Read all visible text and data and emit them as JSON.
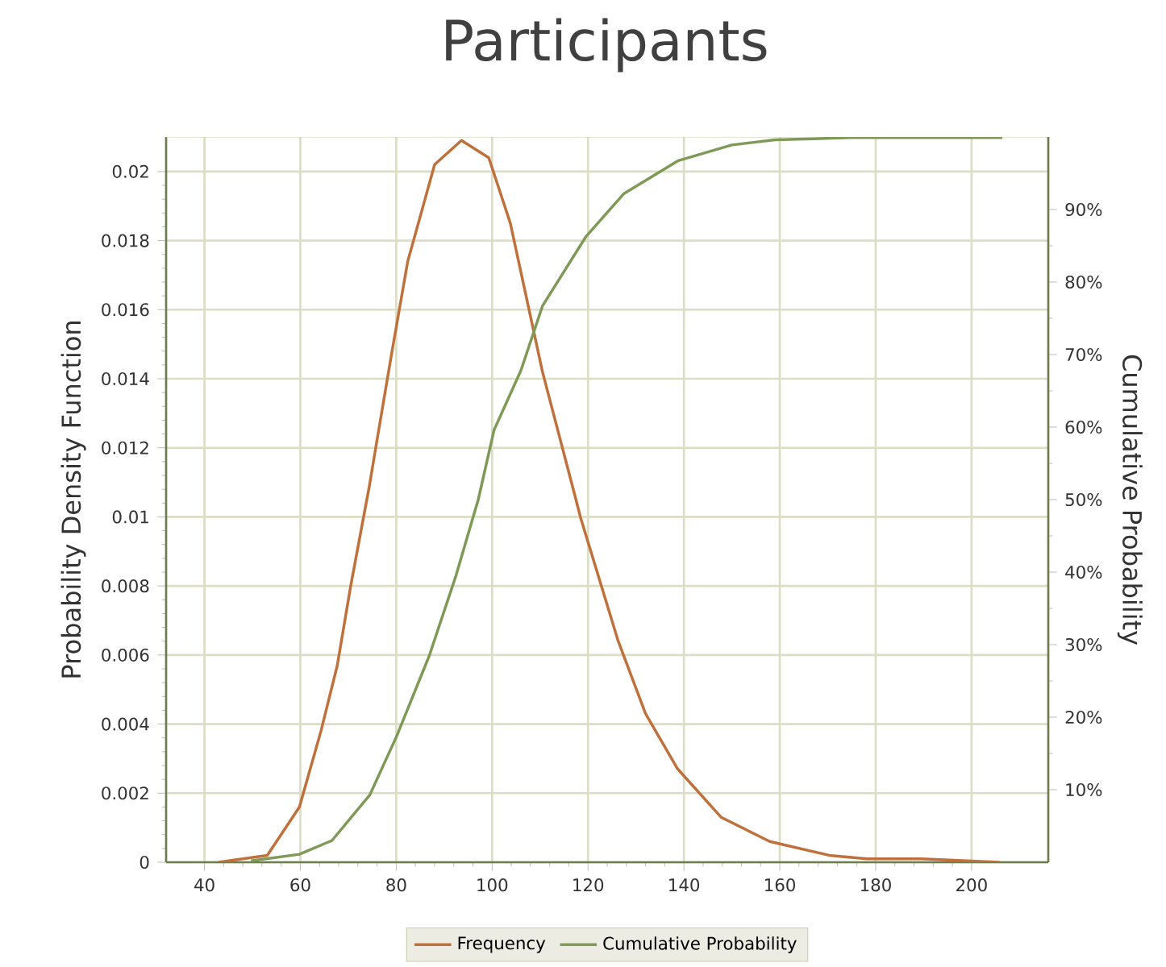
{
  "chart_data": {
    "type": "line",
    "title": "Participants",
    "ylabel": "Probability Density Function",
    "y2label": "Cumulative Probability",
    "xlim": [
      32,
      216
    ],
    "xticks": [
      40,
      60,
      80,
      100,
      120,
      140,
      160,
      180,
      200
    ],
    "ylim": [
      0,
      0.021
    ],
    "yticks": [
      0,
      0.002,
      0.004,
      0.006,
      0.008,
      0.01,
      0.012,
      0.014,
      0.016,
      0.018,
      0.02
    ],
    "y2lim": [
      0,
      100
    ],
    "y2ticks": [
      {
        "value": 10,
        "label": "10%"
      },
      {
        "value": 20,
        "label": "20%"
      },
      {
        "value": 30,
        "label": "30%"
      },
      {
        "value": 40,
        "label": "40%"
      },
      {
        "value": 50,
        "label": "50%"
      },
      {
        "value": 60,
        "label": "60%"
      },
      {
        "value": 70,
        "label": "70%"
      },
      {
        "value": 80,
        "label": "80%"
      },
      {
        "value": 90,
        "label": "90%"
      }
    ],
    "grid": true,
    "legend": "bottom",
    "marker": "none",
    "line_style": "solid",
    "series": [
      {
        "name": "Frequency",
        "color": "#c0703a",
        "x": [
          42.9,
          53.1,
          59.8,
          64.3,
          67.7,
          70.5,
          74.4,
          75.6,
          79,
          82.4,
          88,
          93.6,
          99.3,
          103.8,
          110.5,
          117.3,
          118.4,
          126.3,
          132,
          138.7,
          147.8,
          157.9,
          170.3,
          178.2,
          189.5,
          205.8
        ],
        "values": [
          0,
          0.0002,
          0.0016,
          0.0038,
          0.0057,
          0.008,
          0.0109,
          0.0119,
          0.0147,
          0.0174,
          0.0202,
          0.0209,
          0.0204,
          0.0185,
          0.0142,
          0.0106,
          0.01,
          0.0064,
          0.0043,
          0.0027,
          0.0013,
          0.0006,
          0.0002,
          0.0001,
          0.0001,
          0
        ]
      },
      {
        "name": "Cumulative Probability",
        "color": "#7f9a57",
        "axis": "y2",
        "x": [
          49.7,
          59.8,
          66.6,
          74.5,
          80.1,
          86.9,
          92.5,
          97.1,
          100.4,
          106,
          110.5,
          119.6,
          127.5,
          138.7,
          150,
          159,
          174.8,
          206.4
        ],
        "values": [
          0.2,
          1.1,
          3,
          9.3,
          17.4,
          28.5,
          39.6,
          50,
          59.6,
          67.8,
          76.7,
          86.3,
          92.2,
          96.7,
          98.9,
          99.6,
          99.9,
          99.9
        ]
      }
    ]
  }
}
